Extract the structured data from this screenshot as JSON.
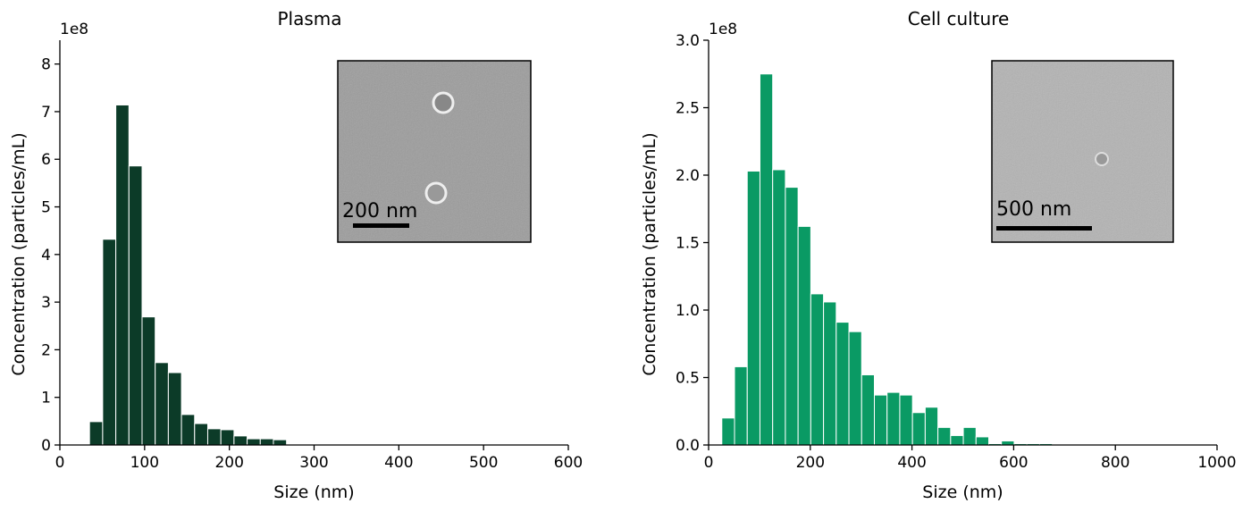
{
  "chart_data": [
    {
      "type": "histogram",
      "title": "Plasma",
      "xlabel": "Size (nm)",
      "ylabel": "Concentration (particles/mL)",
      "offset_label": "1e8",
      "inset_label": "200 nm",
      "color": "#0c3b28",
      "bins": [
        35,
        50.5,
        66,
        81.5,
        97,
        112.5,
        128,
        143.5,
        159,
        174.5,
        190,
        205.5,
        221,
        236.5,
        252,
        267.5
      ],
      "values": [
        0.49,
        4.32,
        7.14,
        5.86,
        2.69,
        1.73,
        1.52,
        0.64,
        0.45,
        0.34,
        0.32,
        0.19,
        0.13,
        0.13,
        0.11
      ],
      "xlim": [
        0,
        600
      ],
      "xticks": [
        0,
        100,
        200,
        300,
        400,
        500,
        600
      ],
      "ylim": [
        0,
        8.5
      ],
      "yticks": [
        0,
        1,
        2,
        3,
        4,
        5,
        6,
        7,
        8
      ]
    },
    {
      "type": "histogram",
      "title": "Cell culture",
      "xlabel": "Size (nm)",
      "ylabel": "Concentration (particles/mL)",
      "offset_label": "1e8",
      "inset_label": "500 nm",
      "color": "#0a9a64",
      "bins": [
        26,
        51,
        76,
        101,
        126,
        151,
        176,
        201,
        226,
        251,
        276,
        301,
        326,
        351,
        376,
        401,
        426,
        451,
        476,
        501,
        526,
        551,
        576,
        601,
        626,
        651,
        676
      ],
      "values": [
        0.2,
        0.58,
        2.03,
        2.75,
        2.04,
        1.91,
        1.62,
        1.12,
        1.06,
        0.91,
        0.84,
        0.52,
        0.37,
        0.39,
        0.37,
        0.24,
        0.28,
        0.13,
        0.07,
        0.13,
        0.06,
        0.01,
        0.03,
        0.01,
        0.01,
        0.01
      ],
      "xlim": [
        0,
        1000
      ],
      "xticks": [
        0,
        200,
        400,
        600,
        800,
        1000
      ],
      "ylim": [
        0,
        3.0
      ],
      "yticks": [
        {
          "value": 0,
          "label": "0.0"
        },
        {
          "value": 0.5,
          "label": "0.5"
        },
        {
          "value": 1,
          "label": "1.0"
        },
        {
          "value": 1.5,
          "label": "1.5"
        },
        {
          "value": 2,
          "label": "2.0"
        },
        {
          "value": 2.5,
          "label": "2.5"
        },
        {
          "value": 3,
          "label": "3.0"
        }
      ]
    }
  ]
}
